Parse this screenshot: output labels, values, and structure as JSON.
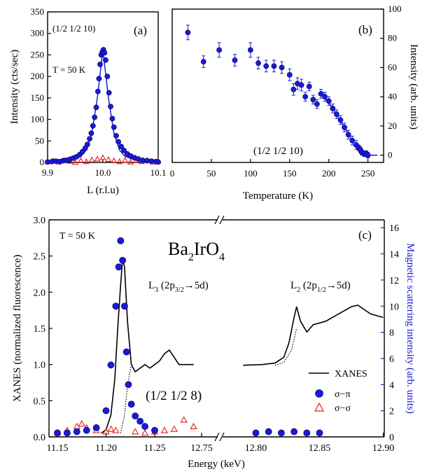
{
  "colors": {
    "blue": "#1a1ad6",
    "red": "#e41a1c",
    "black": "#000000"
  },
  "chart_data": [
    {
      "type": "scatter",
      "panel": "(a)",
      "annotations": [
        "(1/2 1/2 10)",
        "T = 50 K"
      ],
      "xlabel": "L (r.l.u)",
      "ylabel": "Intensity (cts/sec)",
      "xlim": [
        9.9,
        10.1
      ],
      "ylim": [
        0,
        350
      ],
      "xticks": [
        9.9,
        10.0,
        10.1
      ],
      "yticks": [
        0,
        50,
        100,
        150,
        200,
        250,
        300,
        350
      ],
      "series": [
        {
          "marker": "filled-circle",
          "color": "#1a1ad6",
          "points": [
            [
              9.9,
              1
            ],
            [
              9.908,
              2
            ],
            [
              9.915,
              3
            ],
            [
              9.922,
              2
            ],
            [
              9.928,
              4
            ],
            [
              9.934,
              5
            ],
            [
              9.94,
              7
            ],
            [
              9.946,
              10
            ],
            [
              9.952,
              13
            ],
            [
              9.958,
              18
            ],
            [
              9.963,
              25
            ],
            [
              9.968,
              33
            ],
            [
              9.972,
              42
            ],
            [
              9.976,
              55
            ],
            [
              9.979,
              68
            ],
            [
              9.982,
              85
            ],
            [
              9.985,
              105
            ],
            [
              9.988,
              128
            ],
            [
              9.991,
              165
            ],
            [
              9.993,
              195
            ],
            [
              9.995,
              228
            ],
            [
              9.997,
              250
            ],
            [
              9.999,
              257
            ],
            [
              10.001,
              262
            ],
            [
              10.003,
              255
            ],
            [
              10.005,
              238
            ],
            [
              10.008,
              200
            ],
            [
              10.011,
              162
            ],
            [
              10.014,
              130
            ],
            [
              10.017,
              102
            ],
            [
              10.02,
              82
            ],
            [
              10.024,
              62
            ],
            [
              10.028,
              48
            ],
            [
              10.033,
              37
            ],
            [
              10.038,
              28
            ],
            [
              10.044,
              20
            ],
            [
              10.05,
              15
            ],
            [
              10.057,
              11
            ],
            [
              10.064,
              8
            ],
            [
              10.072,
              5
            ],
            [
              10.08,
              4
            ],
            [
              10.088,
              3
            ],
            [
              10.096,
              2
            ],
            [
              10.1,
              1
            ]
          ]
        },
        {
          "marker": "open-triangle",
          "color": "#e41a1c",
          "points": [
            [
              9.9,
              2
            ],
            [
              9.91,
              4
            ],
            [
              9.92,
              1
            ],
            [
              9.93,
              5
            ],
            [
              9.94,
              3
            ],
            [
              9.95,
              0
            ],
            [
              9.96,
              4
            ],
            [
              9.97,
              2
            ],
            [
              9.98,
              6
            ],
            [
              9.99,
              8
            ],
            [
              10.0,
              11
            ],
            [
              10.01,
              7
            ],
            [
              10.02,
              4
            ],
            [
              10.03,
              2
            ],
            [
              10.04,
              5
            ],
            [
              10.05,
              1
            ],
            [
              10.06,
              4
            ],
            [
              10.07,
              2
            ],
            [
              10.08,
              5
            ],
            [
              10.09,
              1
            ],
            [
              10.1,
              3
            ]
          ]
        },
        {
          "style": "line",
          "color": "#1a1ad6",
          "points": [
            [
              9.9,
              1
            ],
            [
              9.92,
              2
            ],
            [
              9.94,
              5
            ],
            [
              9.96,
              14
            ],
            [
              9.97,
              29
            ],
            [
              9.98,
              68
            ],
            [
              9.99,
              150
            ],
            [
              10.0,
              262
            ],
            [
              10.01,
              150
            ],
            [
              10.02,
              68
            ],
            [
              10.03,
              29
            ],
            [
              10.04,
              14
            ],
            [
              10.06,
              5
            ],
            [
              10.08,
              2
            ],
            [
              10.1,
              1
            ]
          ]
        }
      ]
    },
    {
      "type": "scatter",
      "panel": "(b)",
      "annotations": [
        "(1/2 1/2 10)"
      ],
      "xlabel": "Temperature (K)",
      "ylabel": "Intensity (arb. units)",
      "xlim": [
        0,
        270
      ],
      "ylim": [
        -5,
        100
      ],
      "xticks": [
        0,
        50,
        100,
        150,
        200,
        250
      ],
      "yticks": [
        0,
        20,
        40,
        60,
        80,
        100
      ],
      "series": [
        {
          "marker": "filled-circle-with-errorbars",
          "color": "#1a1ad6",
          "points": [
            [
              20,
              84,
              5
            ],
            [
              40,
              64,
              4
            ],
            [
              60,
              72,
              5
            ],
            [
              80,
              65,
              4
            ],
            [
              100,
              72,
              5
            ],
            [
              110,
              63,
              4
            ],
            [
              120,
              61,
              4
            ],
            [
              130,
              61,
              4
            ],
            [
              140,
              60,
              4
            ],
            [
              150,
              55,
              4
            ],
            [
              155,
              45,
              4
            ],
            [
              160,
              49,
              4
            ],
            [
              165,
              48,
              4
            ],
            [
              170,
              40,
              3
            ],
            [
              175,
              47,
              3
            ],
            [
              180,
              38,
              3
            ],
            [
              185,
              35,
              3
            ],
            [
              190,
              42,
              3
            ],
            [
              195,
              40,
              3
            ],
            [
              200,
              37,
              3
            ],
            [
              205,
              32,
              3
            ],
            [
              210,
              28,
              3
            ],
            [
              215,
              24,
              3
            ],
            [
              220,
              19,
              3
            ],
            [
              225,
              14,
              3
            ],
            [
              230,
              10,
              3
            ],
            [
              235,
              7,
              3
            ],
            [
              238,
              5,
              2
            ],
            [
              240,
              4,
              2
            ],
            [
              242,
              2,
              2
            ],
            [
              245,
              1,
              2
            ],
            [
              248,
              1,
              2
            ],
            [
              250,
              0,
              2
            ]
          ]
        },
        {
          "style": "line",
          "color": "#1a1ad6",
          "points": [
            [
              190,
              42
            ],
            [
              200,
              36
            ],
            [
              210,
              28
            ],
            [
              220,
              19
            ],
            [
              230,
              10
            ],
            [
              240,
              3
            ],
            [
              245,
              0
            ],
            [
              262,
              0
            ]
          ]
        }
      ]
    },
    {
      "type": "line",
      "panel": "(c)",
      "annotations": [
        "T = 50 K",
        "Ba2IrO4",
        "L3 (2p3/2→5d)",
        "L2 (2p1/2→5d)",
        "(1/2 1/2 8)"
      ],
      "xlabel": "Energy (keV)",
      "ylabel": "XANES (normalized fluorescence)",
      "y2label": "Magnetic scattering intensity (arb. units)",
      "x_axis_broken": true,
      "xticks_left": [
        "11.15",
        "11.20",
        "11.25",
        "12.75"
      ],
      "xticks_right": [
        "12.80",
        "12.85",
        "12.90"
      ],
      "ylim": [
        0,
        3.0
      ],
      "yticks": [
        0.0,
        0.5,
        1.0,
        1.5,
        2.0,
        2.5,
        3.0
      ],
      "y2lim": [
        0,
        16.6
      ],
      "y2ticks": [
        0,
        2,
        4,
        6,
        8,
        10,
        12,
        14,
        16
      ],
      "legend": {
        "position": "bottom-right",
        "entries": [
          {
            "label": "XANES",
            "symbol": "line",
            "color": "#000000"
          },
          {
            "label": "σ−π",
            "symbol": "filled-circle",
            "color": "#1a1ad6"
          },
          {
            "label": "σ−σ",
            "symbol": "open-triangle",
            "color": "#e41a1c"
          }
        ]
      },
      "series": [
        {
          "label": "XANES",
          "segment": "L3",
          "color": "#000000",
          "points": [
            [
              11.195,
              0.05
            ],
            [
              11.2,
              0.1
            ],
            [
              11.205,
              0.3
            ],
            [
              11.209,
              0.8
            ],
            [
              11.212,
              1.5
            ],
            [
              11.215,
              2.1
            ],
            [
              11.217,
              2.45
            ],
            [
              11.219,
              2.35
            ],
            [
              11.222,
              1.6
            ],
            [
              11.226,
              1.0
            ],
            [
              11.23,
              0.9
            ],
            [
              11.235,
              0.95
            ],
            [
              11.24,
              1.0
            ],
            [
              11.245,
              0.95
            ],
            [
              11.25,
              1.0
            ],
            [
              11.255,
              1.05
            ],
            [
              11.26,
              1.15
            ],
            [
              11.265,
              1.2
            ],
            [
              11.27,
              1.1
            ],
            [
              11.275,
              1.0
            ],
            [
              11.28,
              1.0
            ],
            [
              11.29,
              1.0
            ]
          ]
        },
        {
          "label": "XANES",
          "segment": "L2",
          "color": "#000000",
          "points": [
            [
              12.79,
              0.99
            ],
            [
              12.805,
              1.0
            ],
            [
              12.815,
              1.02
            ],
            [
              12.822,
              1.1
            ],
            [
              12.826,
              1.3
            ],
            [
              12.83,
              1.65
            ],
            [
              12.832,
              1.8
            ],
            [
              12.835,
              1.6
            ],
            [
              12.84,
              1.45
            ],
            [
              12.845,
              1.55
            ],
            [
              12.855,
              1.6
            ],
            [
              12.865,
              1.7
            ],
            [
              12.875,
              1.8
            ],
            [
              12.88,
              1.82
            ],
            [
              12.89,
              1.7
            ],
            [
              12.9,
              1.65
            ]
          ]
        },
        {
          "label": "σ−π",
          "marker": "filled-circle",
          "color": "#1a1ad6",
          "points_right_axis": [
            [
              11.15,
              0.3
            ],
            [
              11.16,
              0.3
            ],
            [
              11.17,
              0.4
            ],
            [
              11.18,
              0.5
            ],
            [
              11.19,
              0.7
            ],
            [
              11.2,
              2.0
            ],
            [
              11.205,
              5.5
            ],
            [
              11.21,
              10
            ],
            [
              11.213,
              13
            ],
            [
              11.215,
              15
            ],
            [
              11.217,
              13.5
            ],
            [
              11.219,
              10
            ],
            [
              11.221,
              6.5
            ],
            [
              11.223,
              4
            ],
            [
              11.226,
              2.5
            ],
            [
              11.23,
              1.6
            ],
            [
              11.235,
              1.2
            ],
            [
              11.24,
              0.8
            ],
            [
              11.25,
              0.5
            ],
            [
              12.8,
              0.3
            ],
            [
              12.81,
              0.4
            ],
            [
              12.82,
              0.3
            ],
            [
              12.83,
              0.4
            ],
            [
              12.84,
              0.3
            ],
            [
              12.85,
              0.3
            ]
          ]
        },
        {
          "label": "σ−σ",
          "marker": "open-triangle",
          "color": "#e41a1c",
          "points_right_axis": [
            [
              11.15,
              0.3
            ],
            [
              11.16,
              0.5
            ],
            [
              11.17,
              0.8
            ],
            [
              11.175,
              1.0
            ],
            [
              11.18,
              0.7
            ],
            [
              11.19,
              0.5
            ],
            [
              11.2,
              0.4
            ],
            [
              11.205,
              0.6
            ],
            [
              11.21,
              0.5
            ],
            [
              11.23,
              0.4
            ],
            [
              11.24,
              0.3
            ],
            [
              11.25,
              0.4
            ],
            [
              11.26,
              0.5
            ],
            [
              11.27,
              0.6
            ],
            [
              11.28,
              1.3
            ],
            [
              11.29,
              0.8
            ]
          ]
        }
      ]
    }
  ],
  "text": {
    "a_ylabel": "Intensity (cts/sec)",
    "a_xlabel": "L (r.l.u)",
    "a_panel": "(a)",
    "a_hkl": "(1/2 1/2 10)",
    "a_temp": "T = 50 K",
    "b_ylabel": "Intensity (arb. units)",
    "b_xlabel": "Temperature (K)",
    "b_panel": "(b)",
    "b_hkl": "(1/2 1/2 10)",
    "c_ylabel": "XANES (normalized fluorescence)",
    "c_y2label": "Magnetic scattering intensity (arb. units)",
    "c_xlabel": "Energy (keV)",
    "c_panel": "(c)",
    "c_temp": "T = 50 K",
    "c_hkl": "(1/2 1/2 8)",
    "c_compound": {
      "a": "Ba",
      "b": "2",
      "c": "IrO",
      "d": "4"
    },
    "c_l3": {
      "a": "L",
      "b": "3",
      "c": " (2p",
      "d": "3/2",
      "e": "→5d)"
    },
    "c_l2": {
      "a": "L",
      "b": "2",
      "c": " (2p",
      "d": "1/2",
      "e": "→5d)"
    },
    "legend_xanes": "XANES",
    "legend_sp": "σ−π",
    "legend_ss": "σ−σ"
  }
}
